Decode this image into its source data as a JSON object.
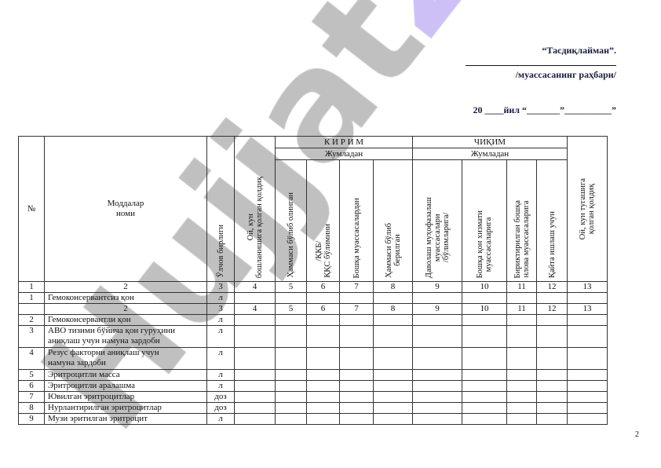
{
  "approval": {
    "title": "“Тасдиқлайман”.",
    "role": "/муассасанинг раҳбари/",
    "date": "20 ____йил “_______”__________”"
  },
  "watermark": {
    "part1": "Hujjat",
    "part2": "24"
  },
  "table": {
    "headers": {
      "no": "№",
      "name": "Моддалар\nноми",
      "unit": "Ўлчов бирлиги",
      "start_balance": "Ой, кун\nбошланишига қолган қолдиқ",
      "kirim": "К И Р И М",
      "kirim_sub": "Жумладан",
      "chiqim": "ЧИҚИМ",
      "chiqim_sub": "Жумладан",
      "end_balance": "Ой, кун тугашига\nқолган қолдиқ",
      "kirim_cols": [
        "Ҳаммаси бўлиб олинган",
        "/ҚКБ/\nҚҚС бўлимини",
        "Бошқа муассасалардан",
        "Ҳаммаси бўлиб\nберилган"
      ],
      "chiqim_cols": [
        "Даволаш муҳофазалаш\nмуассасалари\n/бўлимларига/",
        "Бошқа қон хизмати\nмуассасаларига",
        "Бириктирилган бошқа\nнлова муассасаларига",
        "Қайта ишлаш учун"
      ]
    },
    "rows": [
      {
        "cells": [
          "1",
          "2",
          "3",
          "4",
          "5",
          "6",
          "7",
          "8",
          "9",
          "10",
          "11",
          "12",
          "13"
        ],
        "numbering": true
      },
      {
        "cells": [
          "1",
          "Гемоконсервантсиз қон",
          "л",
          "",
          "",
          "",
          "",
          "",
          "",
          "",
          "",
          "",
          ""
        ]
      },
      {
        "cells": [
          "",
          "2",
          "3",
          "4",
          "5",
          "6",
          "7",
          "8",
          "9",
          "10",
          "11",
          "12",
          "13"
        ],
        "numbering": true
      },
      {
        "cells": [
          "2",
          "Гемоконсервантли қон",
          "л",
          "",
          "",
          "",
          "",
          "",
          "",
          "",
          "",
          "",
          ""
        ]
      },
      {
        "cells": [
          "3",
          "АВО тизими бўйича қон гуруҳини\n аниқлаш учун намуна зардоби",
          "л",
          "",
          "",
          "",
          "",
          "",
          "",
          "",
          "",
          "",
          ""
        ],
        "tall": true
      },
      {
        "cells": [
          "4",
          "Резус факторни аниқлаш учун\nнамуна зардоби",
          "л",
          "",
          "",
          "",
          "",
          "",
          "",
          "",
          "",
          "",
          ""
        ],
        "tall": true
      },
      {
        "cells": [
          "5",
          "Эритроцитли масса",
          "л",
          "",
          "",
          "",
          "",
          "",
          "",
          "",
          "",
          "",
          ""
        ]
      },
      {
        "cells": [
          "6",
          "Эритроцитли аралашма",
          "л",
          "",
          "",
          "",
          "",
          "",
          "",
          "",
          "",
          "",
          ""
        ]
      },
      {
        "cells": [
          "7",
          "Ювилган эритроцитлар",
          "доз",
          "",
          "",
          "",
          "",
          "",
          "",
          "",
          "",
          "",
          ""
        ]
      },
      {
        "cells": [
          "8",
          "Нурлантирилган эритроцитлар",
          "доз",
          "",
          "",
          "",
          "",
          "",
          "",
          "",
          "",
          "",
          ""
        ]
      },
      {
        "cells": [
          "9",
          "Музи эритилган эритроцит",
          "л",
          "",
          "",
          "",
          "",
          "",
          "",
          "",
          "",
          "",
          ""
        ]
      }
    ]
  },
  "page_number": "2"
}
